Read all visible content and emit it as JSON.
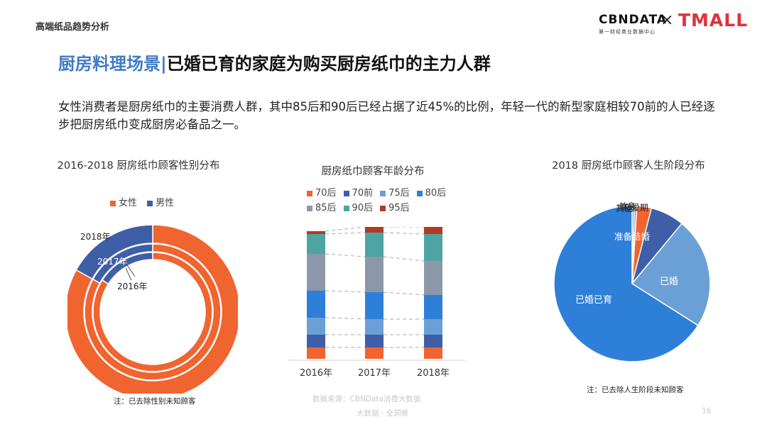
{
  "header": {
    "section_label": "高端纸品趋势分析",
    "logo_cbn": "CBNDATA",
    "logo_cbn_sub": "第一财经商业数据中心",
    "logo_x": "×",
    "logo_tmall": "TMALL"
  },
  "title": {
    "part1": "厨房料理场景",
    "separator": "|",
    "part2": "已婚已育的家庭为购买厨房纸巾的主力人群"
  },
  "description": "女性消费者是厨房纸巾的主要消费人群，其中85后和90后已经占据了近45%的比例，年轻一代的新型家庭相较70前的人已经逐步把厨房纸巾变成厨房必备品之一。",
  "colors": {
    "female": "#f06430",
    "male": "#3f5ea8",
    "age_70h": "#f06430",
    "age_70q": "#3f5ea8",
    "age_75h": "#6aa0d6",
    "age_80h": "#2e7fd8",
    "age_85h": "#8c97aa",
    "age_90h": "#4ea3a3",
    "age_95h": "#b03a25"
  },
  "chart_data": [
    {
      "type": "donut",
      "title": "2016-2018 厨房纸巾顾客性别分布",
      "legend": [
        "女性",
        "男性"
      ],
      "rings": [
        {
          "label": "2018年",
          "female": 83,
          "male": 17
        },
        {
          "label": "2017年",
          "female": 83,
          "male": 17
        },
        {
          "label": "2016年",
          "female": 84,
          "male": 16
        }
      ]
    },
    {
      "type": "bar",
      "stacked": true,
      "title": "厨房纸巾顾客年龄分布",
      "categories": [
        "2016年",
        "2017年",
        "2018年"
      ],
      "series": [
        {
          "name": "70后",
          "values": [
            8,
            8,
            8
          ]
        },
        {
          "name": "70前",
          "values": [
            9,
            9,
            9
          ]
        },
        {
          "name": "75后",
          "values": [
            12,
            11,
            11
          ]
        },
        {
          "name": "80后",
          "values": [
            19,
            19,
            17
          ]
        },
        {
          "name": "85后",
          "values": [
            26,
            25,
            24
          ]
        },
        {
          "name": "90后",
          "values": [
            14,
            17,
            19
          ]
        },
        {
          "name": "95后",
          "values": [
            2,
            4,
            5
          ]
        }
      ],
      "ylim": [
        0,
        90
      ]
    },
    {
      "type": "pie",
      "title": "2018 厨房纸巾顾客人生阶段分布",
      "slices": [
        {
          "label": "其他",
          "value": 0.5
        },
        {
          "label": "恋爱期",
          "value": 0.5
        },
        {
          "label": "单身",
          "value": 3
        },
        {
          "label": "准备结婚",
          "value": 7
        },
        {
          "label": "已婚",
          "value": 23
        },
        {
          "label": "已婚已育",
          "value": 66
        }
      ],
      "colors": [
        "#8c97aa",
        "#6aa0d6",
        "#f06430",
        "#3f5ea8",
        "#6aa0d6",
        "#2e7fd8"
      ]
    }
  ],
  "notes": {
    "gender_note": "注：已去除性别未知顾客",
    "stage_note": "注：已去除人生阶段未知顾客",
    "source_line1": "数据来源：CBNData消费大数据",
    "source_line2": "大数据 · 全洞察",
    "page_number": "16"
  }
}
